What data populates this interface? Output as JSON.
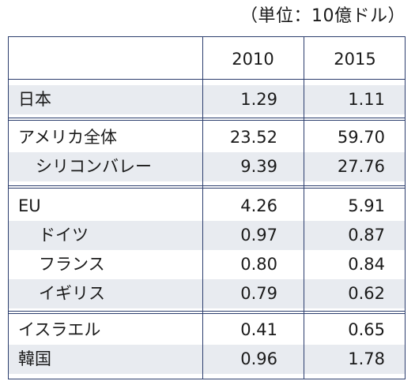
{
  "unit_label": "（単位：10億ドル）",
  "columns": [
    "",
    "2010",
    "2015"
  ],
  "rows": [
    {
      "name": "日本",
      "v2010": "1.29",
      "v2015": "1.11"
    },
    {
      "name": "アメリカ全体",
      "v2010": "23.52",
      "v2015": "59.70"
    },
    {
      "name": "シリコンバレー",
      "v2010": "9.39",
      "v2015": "27.76"
    },
    {
      "name": "EU",
      "v2010": "4.26",
      "v2015": "5.91"
    },
    {
      "name": "ドイツ",
      "v2010": "0.97",
      "v2015": "0.87"
    },
    {
      "name": "フランス",
      "v2010": "0.80",
      "v2015": "0.84"
    },
    {
      "name": "イギリス",
      "v2010": "0.79",
      "v2015": "0.62"
    },
    {
      "name": "イスラエル",
      "v2010": "0.41",
      "v2015": "0.65"
    },
    {
      "name": "韓国",
      "v2010": "0.96",
      "v2015": "1.78"
    }
  ]
}
